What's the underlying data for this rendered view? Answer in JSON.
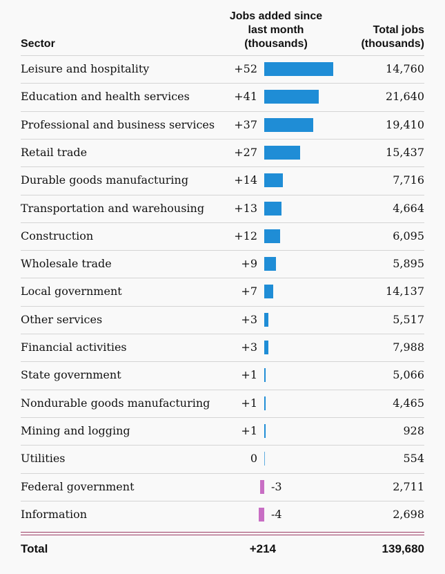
{
  "header": {
    "sector": "Sector",
    "added": "Jobs added since\nlast month\n(thousands)",
    "total": "Total jobs\n(thousands)"
  },
  "chart_data": {
    "type": "table",
    "title": "",
    "columns": [
      "Sector",
      "Jobs added since last month (thousands)",
      "Total jobs (thousands)"
    ],
    "rows": [
      {
        "sector": "Leisure and hospitality",
        "change": 52,
        "change_label": "+52",
        "total": "14,760"
      },
      {
        "sector": "Education and health services",
        "change": 41,
        "change_label": "+41",
        "total": "21,640"
      },
      {
        "sector": "Professional and business services",
        "change": 37,
        "change_label": "+37",
        "total": "19,410"
      },
      {
        "sector": "Retail trade",
        "change": 27,
        "change_label": "+27",
        "total": "15,437"
      },
      {
        "sector": "Durable goods manufacturing",
        "change": 14,
        "change_label": "+14",
        "total": "7,716"
      },
      {
        "sector": "Transportation and warehousing",
        "change": 13,
        "change_label": "+13",
        "total": "4,664"
      },
      {
        "sector": "Construction",
        "change": 12,
        "change_label": "+12",
        "total": "6,095"
      },
      {
        "sector": "Wholesale trade",
        "change": 9,
        "change_label": "+9",
        "total": "5,895"
      },
      {
        "sector": "Local government",
        "change": 7,
        "change_label": "+7",
        "total": "14,137"
      },
      {
        "sector": "Other services",
        "change": 3,
        "change_label": "+3",
        "total": "5,517"
      },
      {
        "sector": "Financial activities",
        "change": 3,
        "change_label": "+3",
        "total": "7,988"
      },
      {
        "sector": "State government",
        "change": 1,
        "change_label": "+1",
        "total": "5,066"
      },
      {
        "sector": "Nondurable goods manufacturing",
        "change": 1,
        "change_label": "+1",
        "total": "4,465"
      },
      {
        "sector": "Mining and logging",
        "change": 1,
        "change_label": "+1",
        "total": "928"
      },
      {
        "sector": "Utilities",
        "change": 0,
        "change_label": "0",
        "total": "554"
      },
      {
        "sector": "Federal government",
        "change": -3,
        "change_label": "-3",
        "total": "2,711"
      },
      {
        "sector": "Information",
        "change": -4,
        "change_label": "-4",
        "total": "2,698"
      }
    ],
    "total": {
      "label": "Total",
      "change_label": "+214",
      "total": "139,680"
    }
  },
  "colors": {
    "positive": "#1f8dd6",
    "negative": "#c86ec4",
    "rule": "#d4d4d4",
    "double_rule": "#9c3b63"
  }
}
